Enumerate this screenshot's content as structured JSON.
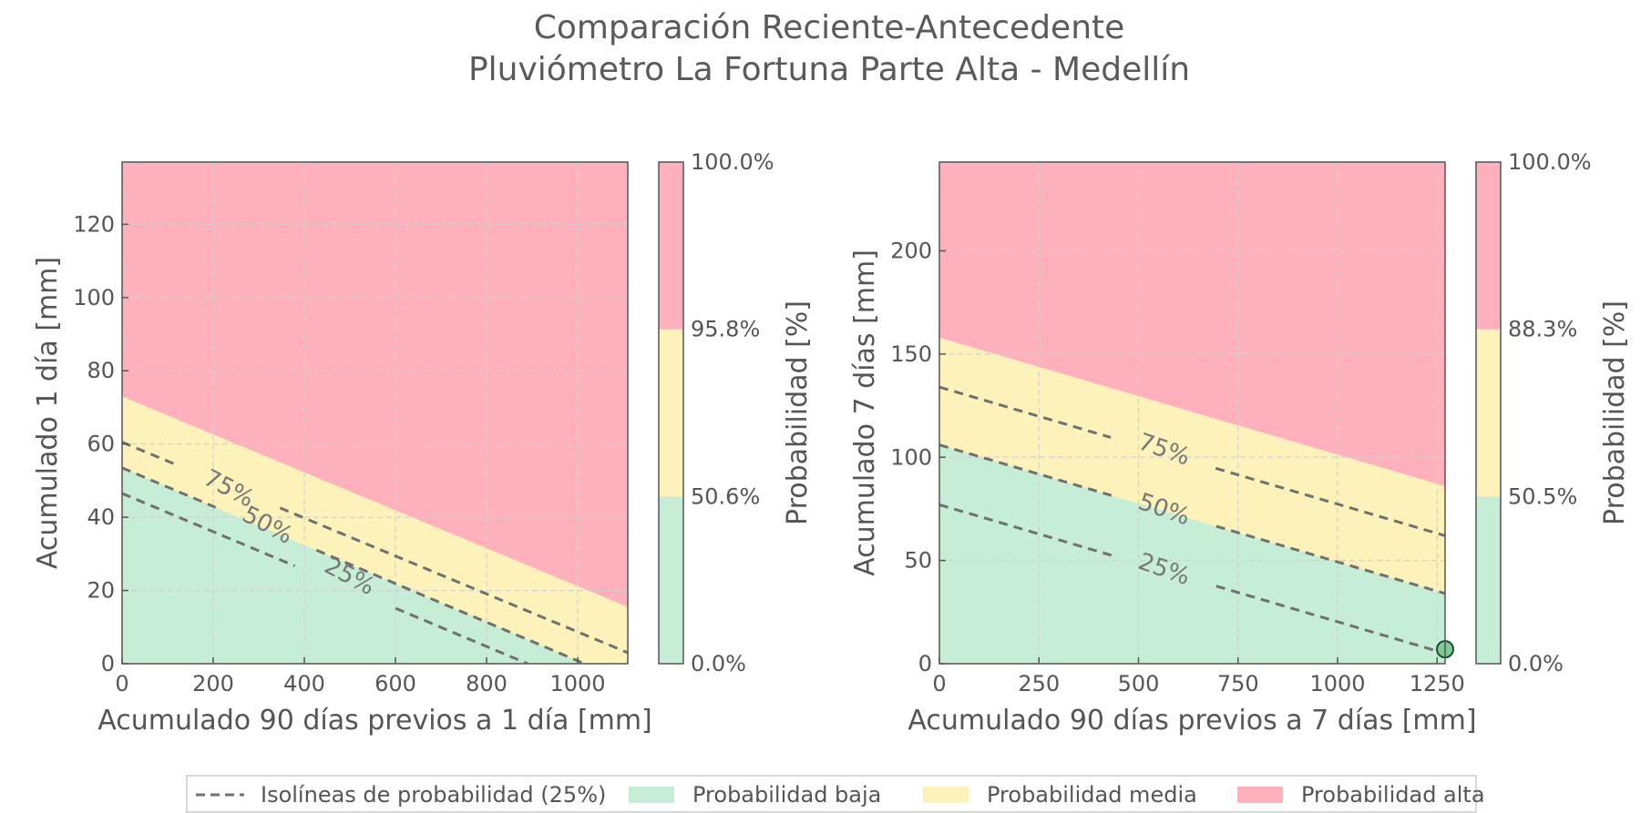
{
  "figure": {
    "title_line1": "Comparación Reciente-Antecedente",
    "title_line2": "Pluviómetro La Fortuna Parte Alta - Medellín"
  },
  "colors": {
    "low": "#c6edd5",
    "medium": "#fdf2b9",
    "high": "#feb0bd",
    "isoline": "#707070",
    "axis": "#555555",
    "grid": "#d0d0d0",
    "point_fill": "#7ecb94",
    "point_edge": "#1a4d2e"
  },
  "legend": {
    "isolines": "Isolíneas de probabilidad (25%)",
    "low": "Probabilidad baja",
    "medium": "Probabilidad media",
    "high": "Probabilidad alta"
  },
  "chart_data": [
    {
      "type": "area",
      "xlabel": "Acumulado 90 días previos a 1 día [mm]",
      "ylabel": "Acumulado 1 día [mm]",
      "xlim": [
        0,
        1110
      ],
      "ylim": [
        0,
        137
      ],
      "xticks": [
        0,
        200,
        400,
        600,
        800,
        1000
      ],
      "yticks": [
        0,
        20,
        40,
        60,
        80,
        100,
        120
      ],
      "grid": true,
      "regions": {
        "low_upper": [
          [
            0,
            53.5
          ],
          [
            1015,
            0
          ]
        ],
        "high_lower": [
          [
            0,
            73
          ],
          [
            1110,
            15.5
          ]
        ]
      },
      "isolines": [
        {
          "label": "25%",
          "line": [
            [
              0,
              46.5
            ],
            [
              890,
              0
            ]
          ],
          "label_at": [
            500,
            24
          ],
          "angle": 28
        },
        {
          "label": "50%",
          "line": [
            [
              0,
              53.5
            ],
            [
              1015,
              0
            ]
          ],
          "label_at": [
            320,
            38
          ],
          "angle": 28
        },
        {
          "label": "75%",
          "line": [
            [
              0,
              60.5
            ],
            [
              1110,
              3
            ]
          ],
          "label_at": [
            235,
            48
          ],
          "angle": 28
        }
      ],
      "colorbar": {
        "label": "Probabilidad [%]",
        "ticks": [
          "0.0%",
          "50.6%",
          "95.8%",
          "100.0%"
        ]
      },
      "points": []
    },
    {
      "type": "area",
      "xlabel": "Acumulado 90 días previos a 7 días [mm]",
      "ylabel": "Acumulado 7 días [mm]",
      "xlim": [
        0,
        1270
      ],
      "ylim": [
        0,
        243
      ],
      "xticks": [
        0,
        250,
        500,
        750,
        1000,
        1250
      ],
      "yticks": [
        0,
        50,
        100,
        150,
        200
      ],
      "grid": true,
      "regions": {
        "low_upper": [
          [
            0,
            106
          ],
          [
            1270,
            34
          ]
        ],
        "high_lower": [
          [
            0,
            158
          ],
          [
            1270,
            86
          ]
        ]
      },
      "isolines": [
        {
          "label": "25%",
          "line": [
            [
              0,
              77
            ],
            [
              1270,
              5
            ]
          ],
          "label_at": [
            565,
            46
          ],
          "angle": 19
        },
        {
          "label": "50%",
          "line": [
            [
              0,
              106
            ],
            [
              1270,
              34
            ]
          ],
          "label_at": [
            565,
            75
          ],
          "angle": 19
        },
        {
          "label": "75%",
          "line": [
            [
              0,
              134
            ],
            [
              1270,
              62
            ]
          ],
          "label_at": [
            565,
            104
          ],
          "angle": 19
        }
      ],
      "colorbar": {
        "label": "Probabilidad [%]",
        "ticks": [
          "0.0%",
          "50.5%",
          "88.3%",
          "100.0%"
        ]
      },
      "points": [
        [
          1270,
          7
        ]
      ]
    }
  ]
}
